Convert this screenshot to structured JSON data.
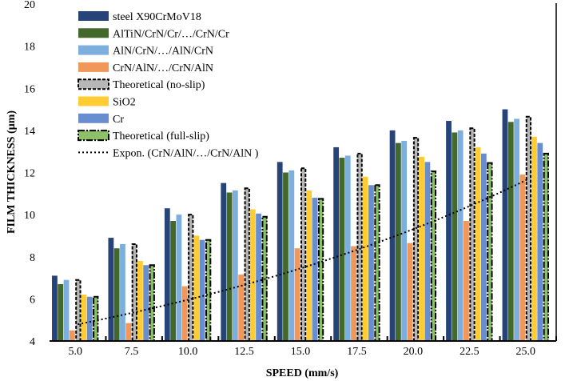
{
  "chart_data": {
    "type": "bar",
    "title": "",
    "xlabel": "SPEED (mm/s)",
    "ylabel": "FILM THICKNESS (µm)",
    "ylim": [
      4,
      20
    ],
    "yticks": [
      "4",
      "6",
      "8",
      "10",
      "12",
      "14",
      "16",
      "18",
      "20"
    ],
    "categories": [
      "5.0",
      "7.5",
      "10.0",
      "12.5",
      "15.0",
      "17.5",
      "20.0",
      "22.5",
      "25.0"
    ],
    "legend_position": "top-left",
    "grid": false,
    "series": [
      {
        "name": "steel X90CrMoV18",
        "color": "#264478",
        "values": [
          7.1,
          8.9,
          10.3,
          11.5,
          12.5,
          13.2,
          14.0,
          14.45,
          15.0
        ]
      },
      {
        "name": "AlTiN/CrN/Cr/…/CrN/Cr",
        "color": "#43682B",
        "values": [
          6.7,
          8.4,
          9.7,
          11.05,
          12.0,
          12.7,
          13.4,
          13.9,
          14.4
        ]
      },
      {
        "name": "AlN/CrN/…/AlN/CrN",
        "color": "#7CAFDD",
        "values": [
          6.9,
          8.6,
          10.0,
          11.15,
          12.1,
          12.8,
          13.5,
          14.0,
          14.55
        ]
      },
      {
        "name": "CrN/AlN/…/CrN/AlN",
        "color": "#F1975A",
        "values": [
          4.5,
          4.85,
          6.6,
          7.15,
          8.4,
          8.5,
          8.65,
          9.7,
          11.9
        ]
      },
      {
        "name": "Theoretical (no-slip)",
        "color": "#B7B7B7",
        "dash": "4,2",
        "values": [
          6.9,
          8.6,
          10.0,
          11.25,
          12.2,
          12.9,
          13.65,
          14.1,
          14.65
        ]
      },
      {
        "name": "SiO2",
        "color": "#FFCD33",
        "values": [
          6.2,
          7.8,
          9.0,
          10.25,
          11.15,
          11.8,
          12.75,
          13.2,
          13.7
        ]
      },
      {
        "name": "Cr",
        "color": "#698ED0",
        "values": [
          6.1,
          7.6,
          8.8,
          10.05,
          10.8,
          11.4,
          12.5,
          12.9,
          13.4
        ]
      },
      {
        "name": "Theoretical (full-slip)",
        "color": "#8CC168",
        "dash": "8,2,2,2",
        "values": [
          6.1,
          7.6,
          8.8,
          9.9,
          10.75,
          11.4,
          12.05,
          12.45,
          12.9
        ]
      }
    ],
    "trendline": {
      "name": "Expon. (CrN/AlN/…/CrN/AlN )",
      "type": "exponential",
      "of_series": "CrN/AlN/…/CrN/AlN"
    }
  }
}
